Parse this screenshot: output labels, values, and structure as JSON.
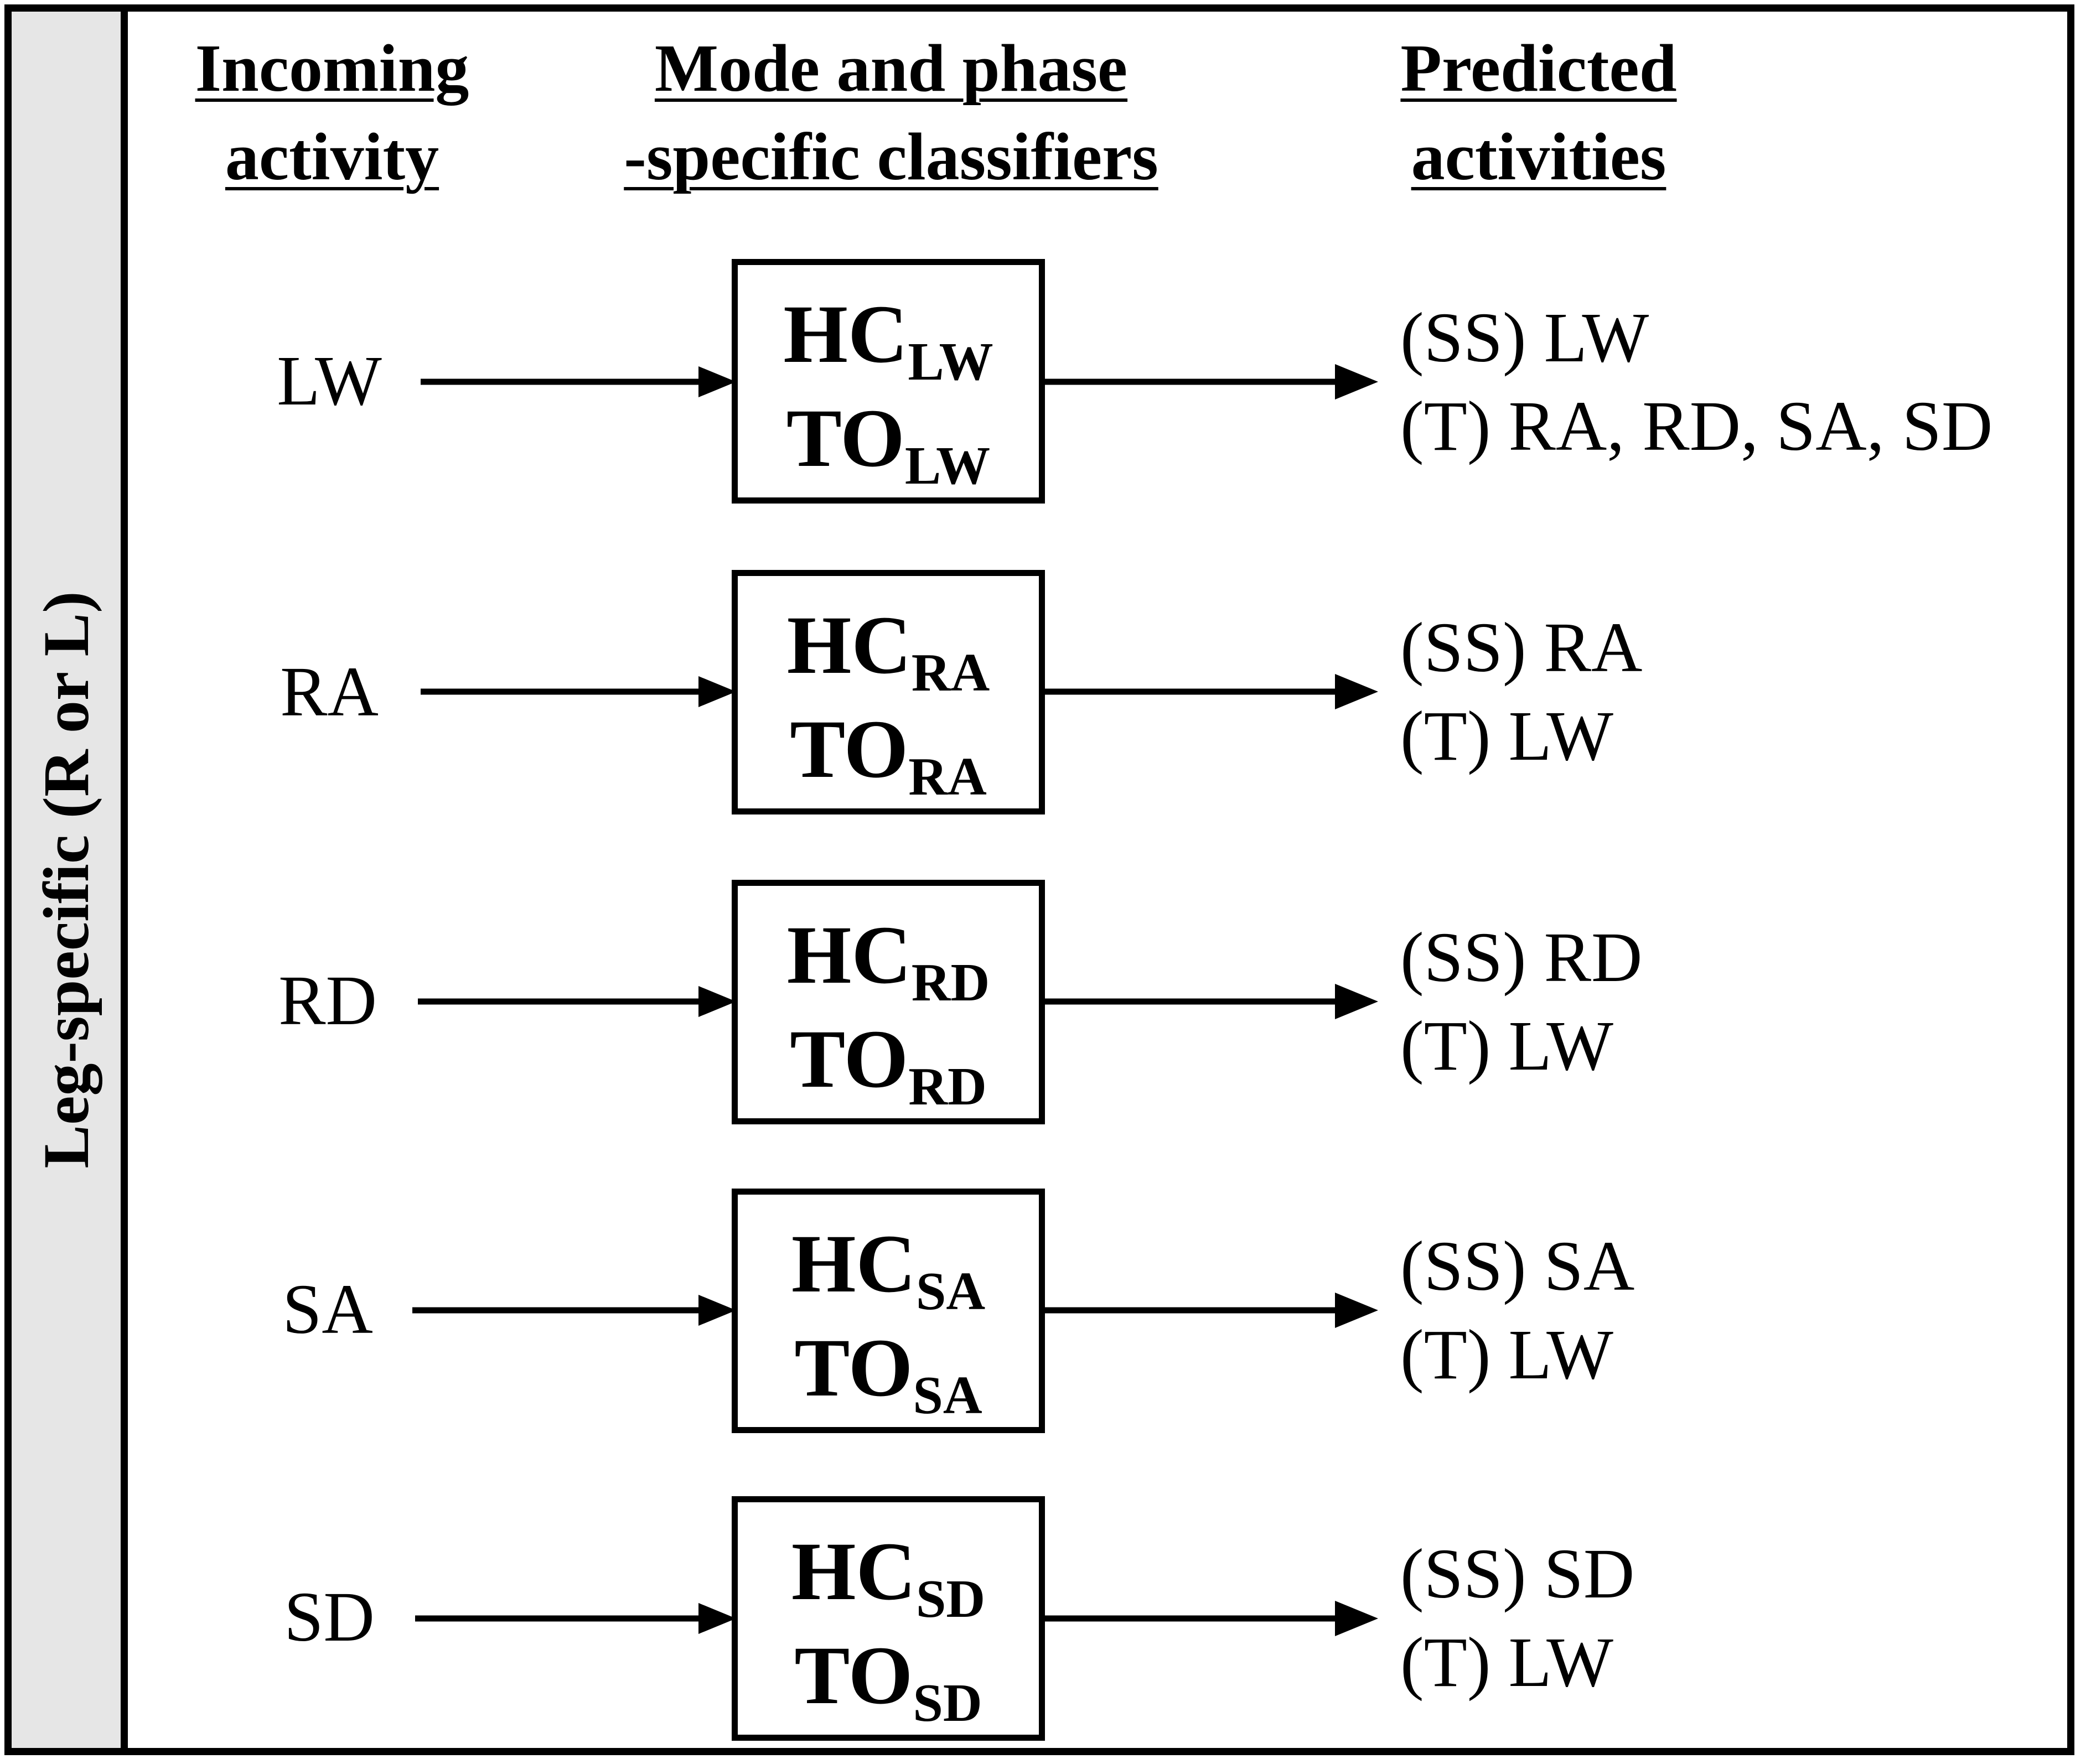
{
  "sidebar": {
    "label": "Leg-specific (R or L)"
  },
  "headers": {
    "incoming": {
      "line1": "Incoming",
      "line2": "activity"
    },
    "classifiers": {
      "line1": "Mode and phase",
      "line2": "-specific classifiers"
    },
    "predicted": {
      "line1": "Predicted",
      "line2": "activities"
    }
  },
  "rows": [
    {
      "incoming": "LW",
      "hc": "HC",
      "to": "TO",
      "sub": "LW",
      "ss": "(SS) LW",
      "t": "(T) RA, RD, SA, SD"
    },
    {
      "incoming": "RA",
      "hc": "HC",
      "to": "TO",
      "sub": "RA",
      "ss": "(SS) RA",
      "t": "(T) LW"
    },
    {
      "incoming": "RD",
      "hc": "HC",
      "to": "TO",
      "sub": "RD",
      "ss": "(SS) RD",
      "t": "(T) LW"
    },
    {
      "incoming": "SA",
      "hc": "HC",
      "to": "TO",
      "sub": "SA",
      "ss": "(SS) SA",
      "t": "(T) LW"
    },
    {
      "incoming": "SD",
      "hc": "HC",
      "to": "TO",
      "sub": "SD",
      "ss": "(SS) SD",
      "t": "(T) LW"
    }
  ]
}
